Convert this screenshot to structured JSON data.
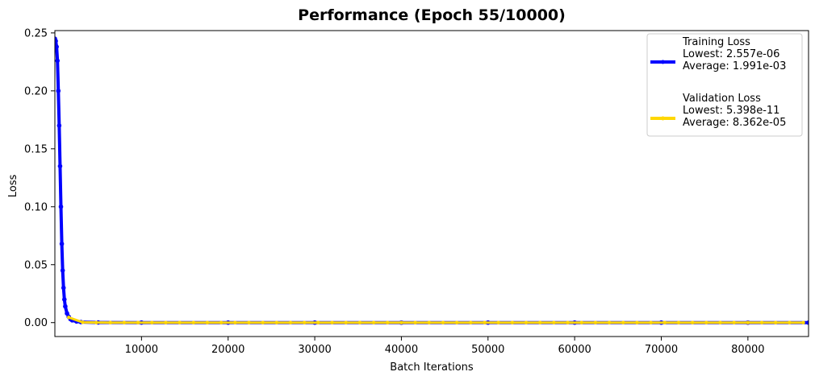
{
  "chart_data": {
    "type": "line",
    "title": "Performance (Epoch 55/10000)",
    "xlabel": "Batch Iterations",
    "ylabel": "Loss",
    "xlim": [
      0,
      87000
    ],
    "ylim": [
      -0.012,
      0.252
    ],
    "xticks": [
      10000,
      20000,
      30000,
      40000,
      50000,
      60000,
      70000,
      80000
    ],
    "yticks": [
      0.0,
      0.05,
      0.1,
      0.15,
      0.2,
      0.25
    ],
    "ytick_labels": [
      "0.00",
      "0.05",
      "0.10",
      "0.15",
      "0.20",
      "0.25"
    ],
    "grid": false,
    "legend_position": "top-right",
    "series": [
      {
        "name": "Training Loss",
        "legend_lines": [
          "Training Loss",
          "Lowest: 2.557e-06",
          "Average: 1.991e-03"
        ],
        "color": "#0000ff",
        "x": [
          0,
          100,
          200,
          300,
          400,
          500,
          600,
          700,
          800,
          900,
          1000,
          1100,
          1200,
          1400,
          1600,
          1800,
          2000,
          2500,
          3000,
          5000,
          10000,
          20000,
          30000,
          40000,
          50000,
          60000,
          70000,
          80000,
          87000
        ],
        "y": [
          0.245,
          0.243,
          0.238,
          0.226,
          0.2,
          0.17,
          0.135,
          0.1,
          0.068,
          0.045,
          0.03,
          0.02,
          0.014,
          0.008,
          0.005,
          0.003,
          0.002,
          0.001,
          0.0005,
          0.0001,
          2e-05,
          1e-05,
          5e-06,
          4e-06,
          3e-06,
          3e-06,
          3e-06,
          3e-06,
          2.6e-06
        ]
      },
      {
        "name": "Validation Loss",
        "legend_lines": [
          "Validation Loss",
          "Lowest: 5.398e-11",
          "Average: 8.362e-05"
        ],
        "color": "#ffd700",
        "x": [
          1600,
          3200,
          4800,
          6400,
          8000,
          9600,
          11200,
          12800,
          14400,
          16000,
          17600,
          19200,
          20800,
          22400,
          24000,
          25600,
          27200,
          28800,
          30400,
          32000,
          33600,
          35200,
          36800,
          38400,
          40000,
          41600,
          43200,
          44800,
          46400,
          48000,
          49600,
          51200,
          52800,
          54400,
          56000,
          57600,
          59200,
          60800,
          62400,
          64000,
          65600,
          67200,
          68800,
          70400,
          72000,
          73600,
          75200,
          76800,
          78400,
          80000,
          81600,
          83200,
          84800,
          86400
        ],
        "y": [
          0.0045,
          0.0003,
          5e-05,
          2e-05,
          1e-05,
          5e-06,
          3e-06,
          2e-06,
          1e-06,
          1e-06,
          5e-07,
          4e-07,
          3e-07,
          2e-07,
          2e-07,
          1e-07,
          1e-07,
          1e-07,
          5e-08,
          5e-08,
          4e-08,
          3e-08,
          3e-08,
          2e-08,
          2e-08,
          2e-08,
          1e-08,
          1e-08,
          1e-08,
          1e-08,
          1e-08,
          5e-09,
          5e-09,
          5e-09,
          4e-09,
          3e-09,
          3e-09,
          2e-09,
          2e-09,
          2e-09,
          1e-09,
          1e-09,
          1e-09,
          1e-09,
          1e-09,
          5e-10,
          5e-10,
          3e-10,
          2e-10,
          1e-10,
          1e-10,
          1e-10,
          1e-10,
          5e-11
        ]
      }
    ]
  }
}
